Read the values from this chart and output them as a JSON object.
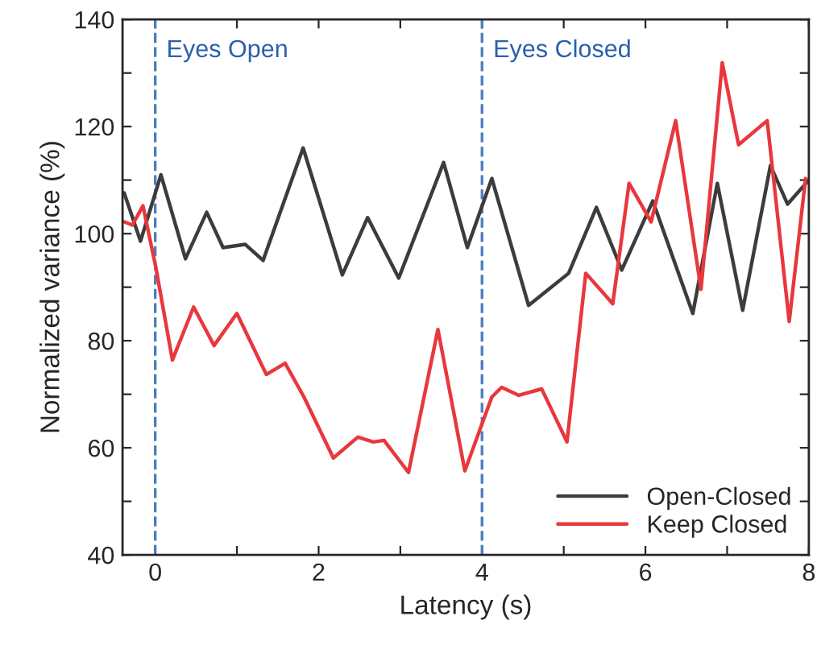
{
  "chart_data": {
    "type": "line",
    "xlabel": "Latency (s)",
    "ylabel": "Normalized variance (%)",
    "xlim": [
      -0.4,
      8
    ],
    "ylim": [
      40,
      140
    ],
    "xticks": [
      0,
      {
        "value": 1,
        "label": null
      },
      2,
      {
        "value": 3,
        "label": null
      },
      4,
      {
        "value": 5,
        "label": null
      },
      6,
      {
        "value": 7,
        "label": null
      },
      8
    ],
    "yticks": [
      40,
      {
        "value": 50,
        "label": null
      },
      60,
      {
        "value": 70,
        "label": null
      },
      80,
      {
        "value": 90,
        "label": null
      },
      100,
      {
        "value": 110,
        "label": null
      },
      120,
      {
        "value": 130,
        "label": null
      },
      140
    ],
    "grid": false,
    "legend": "bottom right",
    "line_style": "solid",
    "marker": "none",
    "series": [
      {
        "name": "Open-Closed",
        "color": "#3c3c3c",
        "x": [
          -0.38,
          -0.18,
          0.07,
          0.37,
          0.63,
          0.83,
          1.1,
          1.32,
          1.81,
          2.29,
          2.6,
          2.98,
          3.53,
          3.82,
          4.12,
          4.57,
          5.06,
          5.4,
          5.71,
          6.09,
          6.58,
          6.88,
          7.19,
          7.53,
          7.74,
          8.0
        ],
        "values": [
          107.6,
          98.6,
          111,
          95.3,
          104,
          97.4,
          98,
          95,
          116,
          92.3,
          103,
          91.7,
          113.3,
          97.4,
          110.3,
          86.6,
          92.6,
          104.9,
          93.2,
          106.1,
          85.1,
          109.4,
          85.7,
          112.7,
          105.5,
          110
        ]
      },
      {
        "name": "Keep Closed",
        "color": "#e8383d",
        "x": [
          -0.38,
          -0.28,
          -0.15,
          0.01,
          0.21,
          0.47,
          0.72,
          0.999,
          1.36,
          1.59,
          1.82,
          2.18,
          2.48,
          2.67,
          2.8,
          3.1,
          3.46,
          3.79,
          4.12,
          4.24,
          4.45,
          4.73,
          5.04,
          5.27,
          5.6,
          5.8,
          6.07,
          6.37,
          6.68,
          6.94,
          7.14,
          7.49,
          7.76,
          7.96
        ],
        "values": [
          102.2,
          101.6,
          105.2,
          93.5,
          76.4,
          86.3,
          79.1,
          85.1,
          73.7,
          75.8,
          69.5,
          58.1,
          62,
          61.1,
          61.4,
          55.4,
          82.1,
          55.7,
          69.5,
          71.3,
          69.8,
          71,
          61.1,
          92.6,
          86.9,
          109.4,
          102.2,
          121.1,
          89.6,
          131.9,
          116.6,
          121.1,
          83.6,
          110.3
        ]
      }
    ],
    "ref_lines": [
      {
        "axis": "x",
        "value": 0,
        "color": "#4a7ebf",
        "line_style": "dashed"
      },
      {
        "axis": "x",
        "value": 4,
        "color": "#4a7ebf",
        "line_style": "dashed"
      }
    ],
    "annotations": [
      "Eyes Open",
      "Eyes Closed"
    ]
  }
}
